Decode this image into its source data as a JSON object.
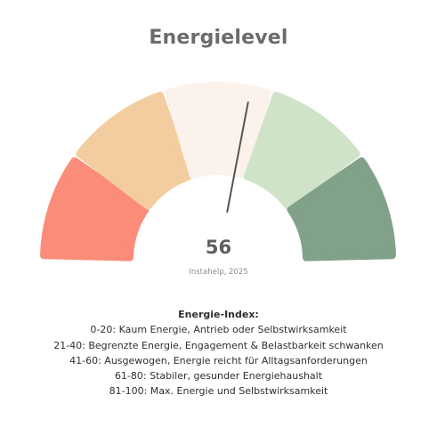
{
  "chart_data": {
    "type": "gauge",
    "title": "Energielevel",
    "value": 56,
    "min": 0,
    "max": 100,
    "source": "Instahelp, 2025",
    "segments": [
      {
        "from": 0,
        "to": 20,
        "color": "#fb8c79"
      },
      {
        "from": 20,
        "to": 40,
        "color": "#f3cd9f"
      },
      {
        "from": 40,
        "to": 60,
        "color": "#fbf2ec"
      },
      {
        "from": 60,
        "to": 80,
        "color": "#cfe3c8"
      },
      {
        "from": 80,
        "to": 100,
        "color": "#82a189"
      }
    ],
    "needle_color": "#555555",
    "legend": {
      "title": "Energie-Index:",
      "items": [
        "0-20: Kaum Energie, Antrieb oder Selbstwirksamkeit",
        "21-40: Begrenzte Energie, Engagement & Belastbarkeit schwanken",
        "41-60: Ausgewogen, Energie reicht für Alltagsanforderungen",
        "61-80: Stabiler, gesunder Energiehaushalt",
        "81-100: Max. Energie und Selbstwirksamkeit"
      ]
    }
  }
}
